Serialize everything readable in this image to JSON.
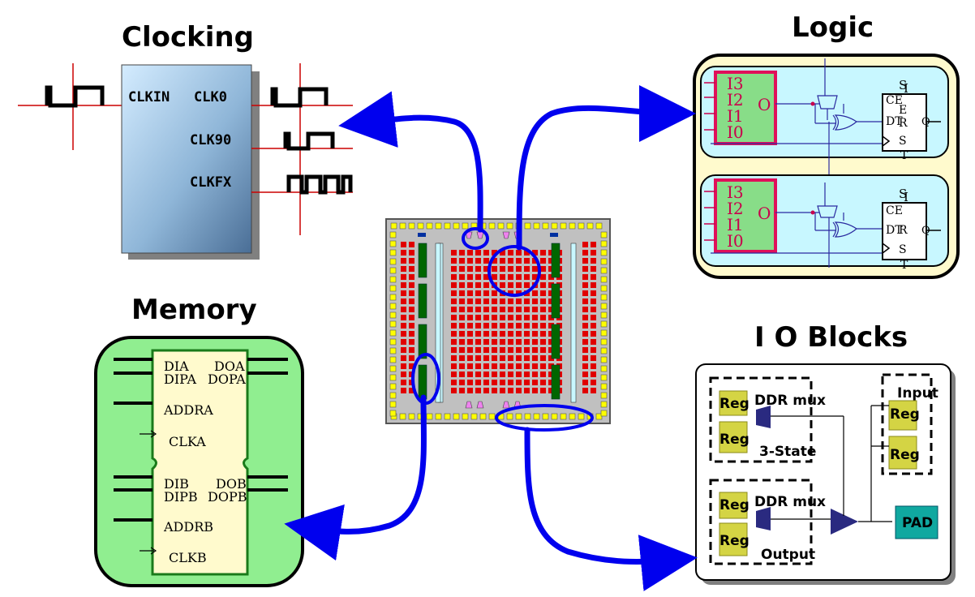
{
  "colors": {
    "arrow": "#0000ee",
    "chip_bg": "#c0c0c0",
    "pad_yellow": "#ffff00",
    "clb_red": "#e00000",
    "ram_green": "#006600",
    "mult_blue": "#0030a0",
    "memory_bg": "#90ee90",
    "logic_bg": "#fffacd",
    "slice_bg": "#c8f7ff",
    "lut_fill": "#88dd88",
    "lut_border": "#e0105a",
    "io_reg": "#d4d444",
    "pad": "#10a8a0"
  },
  "clocking": {
    "title": "Clocking",
    "clkin": "CLKIN",
    "clk0": "CLK0",
    "clk90": "CLK90",
    "clkfx": "CLKFX"
  },
  "logic": {
    "title": "Logic",
    "lut_inputs": [
      "I3",
      "I2",
      "I1",
      "I0"
    ],
    "lut_output": "O",
    "ff": {
      "s": "S",
      "ce": "CE",
      "d": "D",
      "q": "Q",
      "r": "R",
      "set_label": "S",
      "e": "E",
      "t": "T",
      "i": "I",
      "dt": "DT"
    }
  },
  "memory": {
    "title": "Memory",
    "port_a": {
      "dia": "DIA",
      "dipa": "DIPA",
      "doa": "DOA",
      "dopa": "DOPA",
      "addra": "ADDRA",
      "clka": "CLKA"
    },
    "port_b": {
      "dib": "DIB",
      "dipb": "DIPB",
      "dob": "DOB",
      "dopb": "DOPB",
      "addrb": "ADDRB",
      "clkb": "CLKB"
    }
  },
  "io": {
    "title": "I O Blocks",
    "reg": "Reg",
    "ddr_mux": "DDR mux",
    "three_state": "3-State",
    "output": "Output",
    "input": "Input",
    "pad": "PAD"
  }
}
